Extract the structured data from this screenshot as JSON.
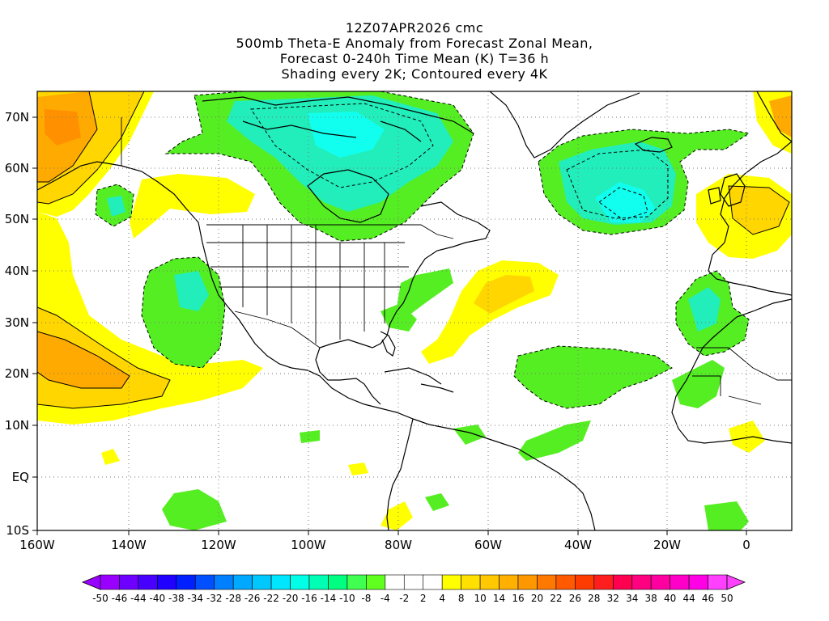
{
  "header": {
    "line1": "12Z07APR2026 cmc",
    "line2": "500mb Theta-E Anomaly from Forecast Zonal Mean,",
    "line3": "Forecast 0-240h Time Mean (K) T=36 h",
    "line4": "Shading every 2K; Contoured every 4K"
  },
  "map": {
    "lon_range": [
      -160,
      8
    ],
    "lat_range": [
      -10,
      75
    ],
    "lon_ticks": [
      "160W",
      "140W",
      "120W",
      "100W",
      "80W",
      "60W",
      "40W",
      "20W",
      "0"
    ],
    "lat_ticks": [
      "70N",
      "60N",
      "50N",
      "40N",
      "30N",
      "20N",
      "10N",
      "EQ",
      "10S"
    ],
    "grid": "dotted",
    "coastline_color": "#000000"
  },
  "colorbar": {
    "labels": [
      "-50",
      "-46",
      "-44",
      "-40",
      "-38",
      "-34",
      "-32",
      "-28",
      "-26",
      "-22",
      "-20",
      "-16",
      "-14",
      "-10",
      "-8",
      "-4",
      "-2",
      "2",
      "4",
      "8",
      "10",
      "14",
      "16",
      "20",
      "22",
      "26",
      "28",
      "32",
      "34",
      "38",
      "40",
      "44",
      "46",
      "50"
    ],
    "colors": [
      "#9a00ff",
      "#6d00ff",
      "#4800ff",
      "#2000ff",
      "#0020ff",
      "#0050ff",
      "#0080ff",
      "#00a8ff",
      "#00c8ff",
      "#00e6ff",
      "#00ffe6",
      "#00ffb4",
      "#00ff80",
      "#40ff50",
      "#60ff20",
      "#ffffff",
      "#ffffff",
      "#ffffff",
      "#ffff00",
      "#ffe000",
      "#ffc800",
      "#ffb000",
      "#ff9800",
      "#ff7800",
      "#ff5a00",
      "#ff3c00",
      "#ff1e1e",
      "#ff0050",
      "#ff0080",
      "#ff00a0",
      "#ff00c8",
      "#ff00e6",
      "#ff40ff"
    ]
  },
  "features": {
    "green": "#55ee22",
    "aqua": "#22eebb",
    "cyan": "#11ffee",
    "yellow": "#ffff00",
    "gold": "#ffd600",
    "orange": "#ffaa00"
  }
}
